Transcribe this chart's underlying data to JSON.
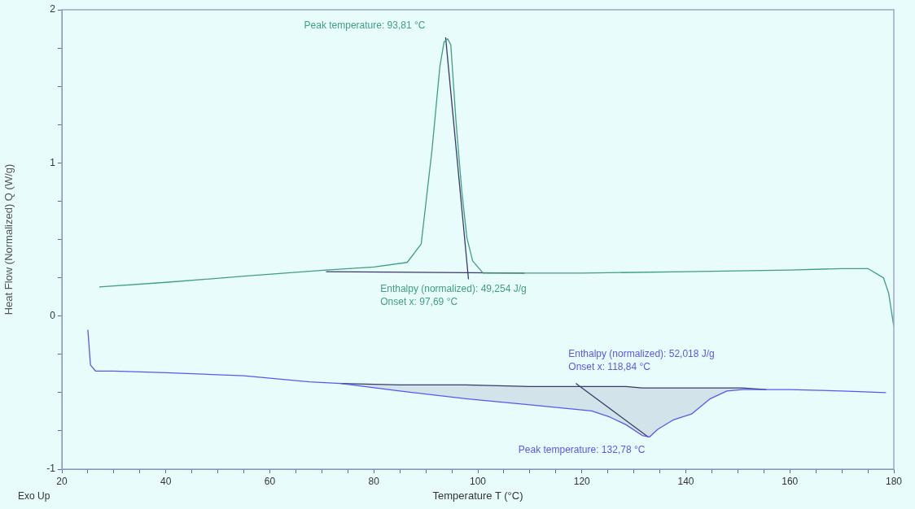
{
  "chart_data": {
    "type": "line",
    "xlabel": "Temperature T (°C)",
    "ylabel": "Heat Flow (Normalized) Q (W/g)",
    "xlim": [
      20,
      180
    ],
    "ylim": [
      -1,
      2
    ],
    "xticks": [
      20,
      {
        "value": 25,
        "label": null
      },
      {
        "value": 30,
        "label": null
      },
      {
        "value": 35,
        "label": null
      },
      40,
      {
        "value": 45,
        "label": null
      },
      {
        "value": 50,
        "label": null
      },
      {
        "value": 55,
        "label": null
      },
      60,
      {
        "value": 65,
        "label": null
      },
      {
        "value": 70,
        "label": null
      },
      {
        "value": 75,
        "label": null
      },
      80,
      {
        "value": 85,
        "label": null
      },
      {
        "value": 90,
        "label": null
      },
      {
        "value": 95,
        "label": null
      },
      100,
      {
        "value": 105,
        "label": null
      },
      {
        "value": 110,
        "label": null
      },
      {
        "value": 115,
        "label": null
      },
      120,
      {
        "value": 125,
        "label": null
      },
      {
        "value": 130,
        "label": null
      },
      {
        "value": 135,
        "label": null
      },
      140,
      {
        "value": 145,
        "label": null
      },
      {
        "value": 150,
        "label": null
      },
      {
        "value": 155,
        "label": null
      },
      160,
      {
        "value": 165,
        "label": null
      },
      {
        "value": 170,
        "label": null
      },
      {
        "value": 175,
        "label": null
      },
      180
    ],
    "yticks": [
      -1,
      {
        "value": -0.75,
        "label": null
      },
      {
        "value": -0.5,
        "label": null
      },
      {
        "value": -0.25,
        "label": null
      },
      0,
      {
        "value": 0.25,
        "label": null
      },
      {
        "value": 0.5,
        "label": null
      },
      {
        "value": 0.75,
        "label": null
      },
      1,
      {
        "value": 1.25,
        "label": null
      },
      {
        "value": 1.5,
        "label": null
      },
      {
        "value": 1.75,
        "label": null
      },
      2
    ],
    "grid": false,
    "legend": false,
    "marker": "none",
    "line_style": "solid",
    "series": [
      {
        "color": "#3f9f80",
        "x": [
          27.2,
          40,
          55,
          70.8,
          80,
          86.4,
          89.1,
          91.2,
          92.7,
          93.5,
          94.2,
          94.8,
          95.8,
          96.9,
          97.9,
          99,
          101,
          110,
          120,
          140,
          160,
          170,
          175,
          178,
          179,
          180
        ],
        "values": [
          0.19,
          0.22,
          0.26,
          0.3,
          0.32,
          0.35,
          0.47,
          1.09,
          1.63,
          1.79,
          1.81,
          1.77,
          1.27,
          0.82,
          0.51,
          0.36,
          0.28,
          0.28,
          0.28,
          0.29,
          0.3,
          0.31,
          0.31,
          0.25,
          0.15,
          -0.07
        ]
      },
      {
        "color": "#5858ee",
        "x": [
          25,
          25.5,
          26.5,
          30,
          40,
          55,
          67.6,
          73.6,
          85,
          97.7,
          110,
          121.9,
          125.4,
          128.5,
          131.6,
          133,
          134.6,
          137.5,
          141.1,
          144.7,
          147.9,
          150.9,
          160,
          170,
          178.5
        ],
        "values": [
          -0.09,
          -0.32,
          -0.36,
          -0.36,
          -0.37,
          -0.39,
          -0.43,
          -0.44,
          -0.49,
          -0.54,
          -0.58,
          -0.62,
          -0.66,
          -0.71,
          -0.78,
          -0.79,
          -0.74,
          -0.68,
          -0.64,
          -0.54,
          -0.49,
          -0.48,
          -0.48,
          -0.49,
          -0.5
        ]
      },
      {
        "color": "#3a3a6a",
        "x": [
          70.8,
          109
        ],
        "values": [
          0.29,
          0.28
        ]
      },
      {
        "color": "#3a3a6a",
        "x": [
          93.8,
          98.2
        ],
        "values": [
          1.82,
          0.24
        ]
      },
      {
        "color": "#3a3a6a",
        "x": [
          73.6,
          85,
          97.7,
          110,
          121.9,
          125.4,
          128.5,
          131.6,
          133,
          134.6,
          137.5,
          141.1,
          144.7,
          147.9,
          150.9,
          155.5
        ],
        "values": [
          -0.44,
          -0.45,
          -0.45,
          -0.46,
          -0.46,
          -0.46,
          -0.46,
          -0.47,
          -0.47,
          -0.47,
          -0.47,
          -0.47,
          -0.47,
          -0.47,
          -0.47,
          -0.48
        ],
        "lower": [
          -0.44,
          -0.49,
          -0.54,
          -0.58,
          -0.62,
          -0.66,
          -0.71,
          -0.78,
          -0.79,
          -0.74,
          -0.68,
          -0.64,
          -0.54,
          -0.49,
          -0.48,
          -0.48
        ],
        "upper": [
          -0.44,
          -0.45,
          -0.45,
          -0.46,
          -0.46,
          -0.46,
          -0.46,
          -0.47,
          -0.47,
          -0.47,
          -0.47,
          -0.47,
          -0.47,
          -0.47,
          -0.47,
          -0.48
        ]
      },
      {
        "color": "#3a3a6a",
        "x": [
          118.84,
          132.78
        ],
        "values": [
          -0.44,
          -0.79
        ]
      }
    ],
    "annotations": [
      {
        "text": "Peak temperature: 93,81 °C",
        "x": 93.81,
        "y": 1.81
      },
      {
        "text": "Enthalpy (normalized): 49,254 J/g\nOnset x: 97,69 °C",
        "x": 97.69,
        "y": 0.28
      },
      {
        "text": "Enthalpy (normalized): 52,018 J/g\nOnset x: 118,84 °C",
        "x": 118.84,
        "y": -0.44
      },
      {
        "text": "Peak temperature: 132,78 °C",
        "x": 132.78,
        "y": -0.79
      },
      "Exo Up"
    ]
  }
}
